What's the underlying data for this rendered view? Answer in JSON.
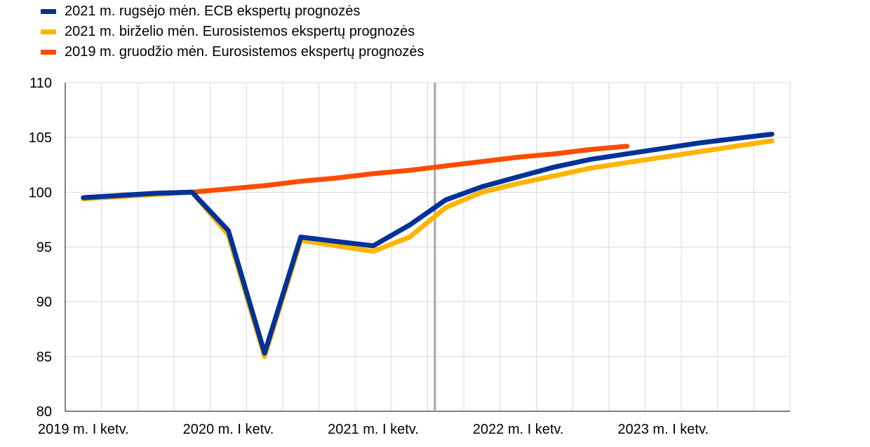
{
  "chart_data": {
    "type": "line",
    "title": "",
    "xlabel": "",
    "ylabel": "",
    "ylim": [
      80,
      110
    ],
    "yticks": [
      80,
      85,
      90,
      95,
      100,
      105,
      110
    ],
    "x": [
      "2019 Q1",
      "2019 Q2",
      "2019 Q3",
      "2019 Q4",
      "2020 Q1",
      "2020 Q2",
      "2020 Q3",
      "2020 Q4",
      "2021 Q1",
      "2021 Q2",
      "2021 Q3",
      "2021 Q4",
      "2022 Q1",
      "2022 Q2",
      "2022 Q3",
      "2022 Q4",
      "2023 Q1",
      "2023 Q2",
      "2023 Q3",
      "2023 Q4"
    ],
    "xtick_labels": [
      {
        "x": "2019 Q1",
        "label": "2019 m. I ketv."
      },
      {
        "x": "2020 Q1",
        "label": "2020 m. I ketv."
      },
      {
        "x": "2021 Q1",
        "label": "2021 m. I ketv."
      },
      {
        "x": "2022 Q1",
        "label": "2022 m. I ketv."
      },
      {
        "x": "2023 Q1",
        "label": "2023 m. I ketv."
      }
    ],
    "vertical_marker": {
      "x": "2021 Q3",
      "offset": -0.3,
      "color": "#a6a6a6"
    },
    "grid": true,
    "legend_position": "top-left",
    "series": [
      {
        "name": "2021 m. rugsėjo mėn. ECB ekspertų prognozės",
        "color": "#003299",
        "values": [
          99.5,
          99.7,
          99.9,
          100.0,
          96.5,
          85.3,
          95.9,
          95.5,
          95.1,
          97.0,
          99.3,
          100.5,
          101.4,
          102.3,
          103.0,
          103.5,
          104.0,
          104.5,
          104.9,
          105.3
        ]
      },
      {
        "name": "2021 m. birželio mėn. Eurosistemos ekspertų prognozės",
        "color": "#ffb400",
        "values": [
          99.4,
          99.6,
          99.8,
          100.0,
          96.1,
          85.0,
          95.6,
          95.1,
          94.6,
          95.9,
          98.6,
          100.0,
          100.8,
          101.5,
          102.2,
          102.7,
          103.2,
          103.7,
          104.2,
          104.7
        ]
      },
      {
        "name": "2019 m. gruodžio mėn. Eurosistemos ekspertų prognozės",
        "color": "#ff4b00",
        "values": [
          99.5,
          99.7,
          99.9,
          100.0,
          100.3,
          100.6,
          101.0,
          101.3,
          101.7,
          102.0,
          102.4,
          102.8,
          103.2,
          103.5,
          103.9,
          104.2,
          null,
          null,
          null,
          null
        ]
      }
    ]
  }
}
